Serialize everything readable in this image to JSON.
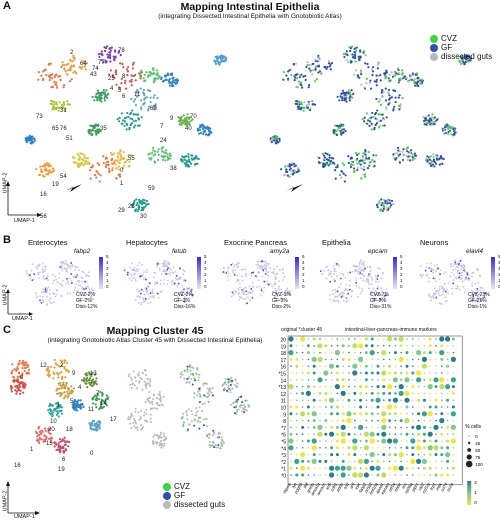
{
  "panelA": {
    "letter": "A",
    "title": "Mapping Intestinal Epithelia",
    "subtitle": "(integrating Dissected Intestinal Epithelia with Gnotobiotic Atlas)",
    "axis_y": "UMAP-2",
    "axis_x": "UMAP-1",
    "legend": [
      {
        "label": "CVZ",
        "color": "#3dd63a"
      },
      {
        "label": "GF",
        "color": "#2d4fb0"
      },
      {
        "label": "dissected guts",
        "color": "#b9b9b9"
      }
    ],
    "cluster_labels": [
      "78",
      "2",
      "64",
      "77",
      "74",
      "43",
      "8",
      "25",
      "4",
      "5",
      "6",
      "11",
      "73",
      "31",
      "65",
      "76",
      "51",
      "35",
      "60",
      "7",
      "70",
      "9",
      "24",
      "55",
      "54",
      "19",
      "16",
      "0",
      "1",
      "59",
      "38",
      "40",
      "28",
      "29",
      "30",
      "56"
    ]
  },
  "panelB": {
    "letter": "B",
    "axis_y": "UMAP-2",
    "axis_x": "UMAP-1",
    "plots": [
      {
        "title": "Enterocytes",
        "gene": "fabp2",
        "stats": [
          "CVZ-2%",
          "GF-2%",
          "Diss-12%"
        ],
        "ticks": [
          "5",
          "4",
          "3",
          "2",
          "1",
          "0"
        ]
      },
      {
        "title": "Hepatocytes",
        "gene": "fetub",
        "stats": [
          "CVZ-2%",
          "GF-3%",
          "Diss-16%"
        ],
        "ticks": [
          "5",
          "4",
          "3",
          "2",
          "1",
          "0"
        ]
      },
      {
        "title": "Exocrine Pancreas",
        "gene": "amy2a",
        "stats": [
          "CVZ-1%",
          "GF-3%",
          "Diss-2%"
        ],
        "ticks": [
          "5",
          "4",
          "3",
          "2",
          "1",
          "0"
        ]
      },
      {
        "title": "Epithelia",
        "gene": "epcam",
        "stats": [
          "CVZ-7%",
          "GF-9%",
          "Diss-31%"
        ],
        "ticks": [
          "5",
          "4",
          "3",
          "2",
          "1",
          "0"
        ]
      },
      {
        "title": "Neurons",
        "gene": "elavl4",
        "stats": [
          "CVZ-25%",
          "GF-21%",
          "Diss-1%"
        ],
        "ticks": [
          "5",
          "4",
          "3",
          "2",
          "1",
          "0"
        ]
      }
    ]
  },
  "panelC": {
    "letter": "C",
    "title": "Mapping Cluster 45",
    "subtitle": "(integrating Gnotobiotic Atlas Cluster 45 with Dissected Intestinal Epithelia)",
    "axis_y": "UMAP-2",
    "axis_x": "UMAP-1",
    "legend": [
      {
        "label": "CVZ",
        "color": "#3dd63a"
      },
      {
        "label": "GF",
        "color": "#2d4fb0"
      },
      {
        "label": "dissected guts",
        "color": "#b9b9b9"
      }
    ],
    "cluster_labels": [
      "12",
      "2",
      "9",
      "8",
      "13",
      "4",
      "7",
      "14",
      "5",
      "3",
      "11",
      "17",
      "10",
      "20",
      "18",
      "15",
      "1",
      "16",
      "6",
      "19",
      "0"
    ],
    "dotplot": {
      "header_left": "original *cluster 45",
      "header_right": "intestinal-liver-pancreas-immune markers",
      "rows": [
        "20",
        "19",
        "18",
        "17",
        "16",
        "*15",
        "14",
        "*13",
        "12",
        "11",
        "10",
        "9",
        "8",
        "*7",
        "*6",
        "*5",
        "*4",
        "*3",
        "*2",
        "*1",
        "*0"
      ],
      "genes": [
        "rbpms",
        "lyn",
        "pdgfrb",
        "lhfl",
        "grimp",
        "anxa1a",
        "anxa1c",
        "krt5",
        "cdh1",
        "ppbp",
        "sod",
        "arfl",
        "trpc",
        "fabp2",
        "nr5a2",
        "hnf1ba",
        "apoa1",
        "epcam",
        "ptf1a",
        "hbbe",
        "lrrc",
        "rpl36a",
        "ptprc",
        "rac2",
        "csf1ra",
        "lcp1",
        "mpx",
        "cd74",
        "pc2a"
      ],
      "color_ticks": [
        "2",
        "1",
        "0"
      ],
      "size_legend_title": "% cells",
      "size_ticks": [
        "0",
        "25",
        "50",
        "75",
        "100"
      ]
    }
  }
}
